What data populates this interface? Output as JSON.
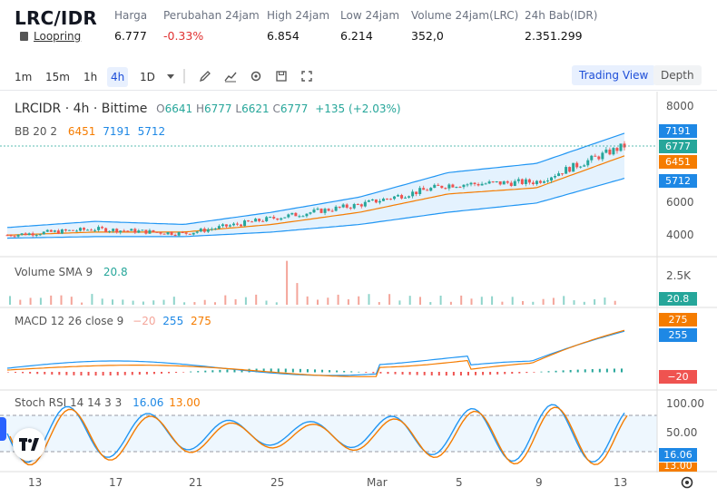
{
  "header": {
    "pair": "LRC/IDR",
    "sub_label": "Loopring",
    "stats": [
      {
        "label": "Harga",
        "value": "6.777"
      },
      {
        "label": "Perubahan 24jam",
        "value": "-0.33%"
      },
      {
        "label": "High 24jam",
        "value": "6.854"
      },
      {
        "label": "Low 24jam",
        "value": "6.214"
      },
      {
        "label": "Volume 24jam(LRC)",
        "value": "352,0"
      },
      {
        "label": "24h Bab(IDR)",
        "value": "2.351.299"
      }
    ]
  },
  "toolbar": {
    "intervals": [
      "1m",
      "15m",
      "1h",
      "4h",
      "1D"
    ],
    "active_interval": "4h",
    "icons": [
      "dropdown-icon",
      "draw-icon",
      "indicator-icon",
      "settings-icon",
      "save-icon",
      "fullscreen-icon"
    ],
    "trading_view_label": "Trading View",
    "depth_label": "Depth"
  },
  "legend": {
    "symbol": "LRCIDR · 4h · Bittime",
    "o_prefix": "O",
    "o": "6641",
    "h_prefix": "H",
    "h": "6777",
    "l_prefix": "L",
    "l": "6621",
    "c_prefix": "C",
    "c": "6777",
    "change": "+135 (+2.03%)",
    "bb_label": "BB 20 2",
    "bb_basis": "6451",
    "bb_upper": "7191",
    "bb_lower": "5712",
    "vol_label": "Volume SMA 9",
    "vol_value": "20.8",
    "macd_label": "MACD 12 26 close 9",
    "macd_hist": "−20",
    "macd_macd": "255",
    "macd_signal": "275",
    "rsi_label": "Stoch RSI 14 14 3 3",
    "rsi_k": "16.06",
    "rsi_d": "13.00"
  },
  "price_axis": [
    "8000",
    "7000",
    "6000",
    "5000",
    "4000"
  ],
  "volume_axis": [
    "2.5K"
  ],
  "rsi_axis": [
    "100.00",
    "50.00"
  ],
  "tags": {
    "bb_upper": "7191",
    "price": "6777",
    "bb_basis": "6451",
    "bb_lower": "5712",
    "vol": "20.8",
    "macd_signal": "275",
    "macd": "255",
    "hist": "−20",
    "rsi_k": "16.06",
    "rsi_d": "13.00"
  },
  "x_labels": [
    "13",
    "17",
    "21",
    "25",
    "Mar",
    "5",
    "9",
    "13"
  ],
  "colors": {
    "up": "#26a69a",
    "down": "#ef5350",
    "bb": "#2196f3",
    "basis": "#f57c00",
    "tag_blue": "#1e88e5",
    "tag_orange": "#f57c00",
    "tag_green": "#26a69a",
    "tag_red": "#ef5350"
  },
  "chart_data": {
    "type": "candlestick",
    "x": [
      "Feb 13",
      "Feb 17",
      "Feb 21",
      "Feb 25",
      "Mar 1",
      "Mar 5",
      "Mar 9",
      "Mar 13"
    ],
    "price_close": [
      3850,
      4050,
      3900,
      4400,
      4850,
      5500,
      5600,
      6777
    ],
    "bb_upper": [
      4100,
      4300,
      4200,
      4600,
      5100,
      5900,
      6200,
      7191
    ],
    "bb_basis": [
      3850,
      3950,
      3950,
      4200,
      4600,
      5200,
      5400,
      6451
    ],
    "bb_lower": [
      3750,
      3800,
      3800,
      3950,
      4200,
      4600,
      4900,
      5712
    ]
  }
}
